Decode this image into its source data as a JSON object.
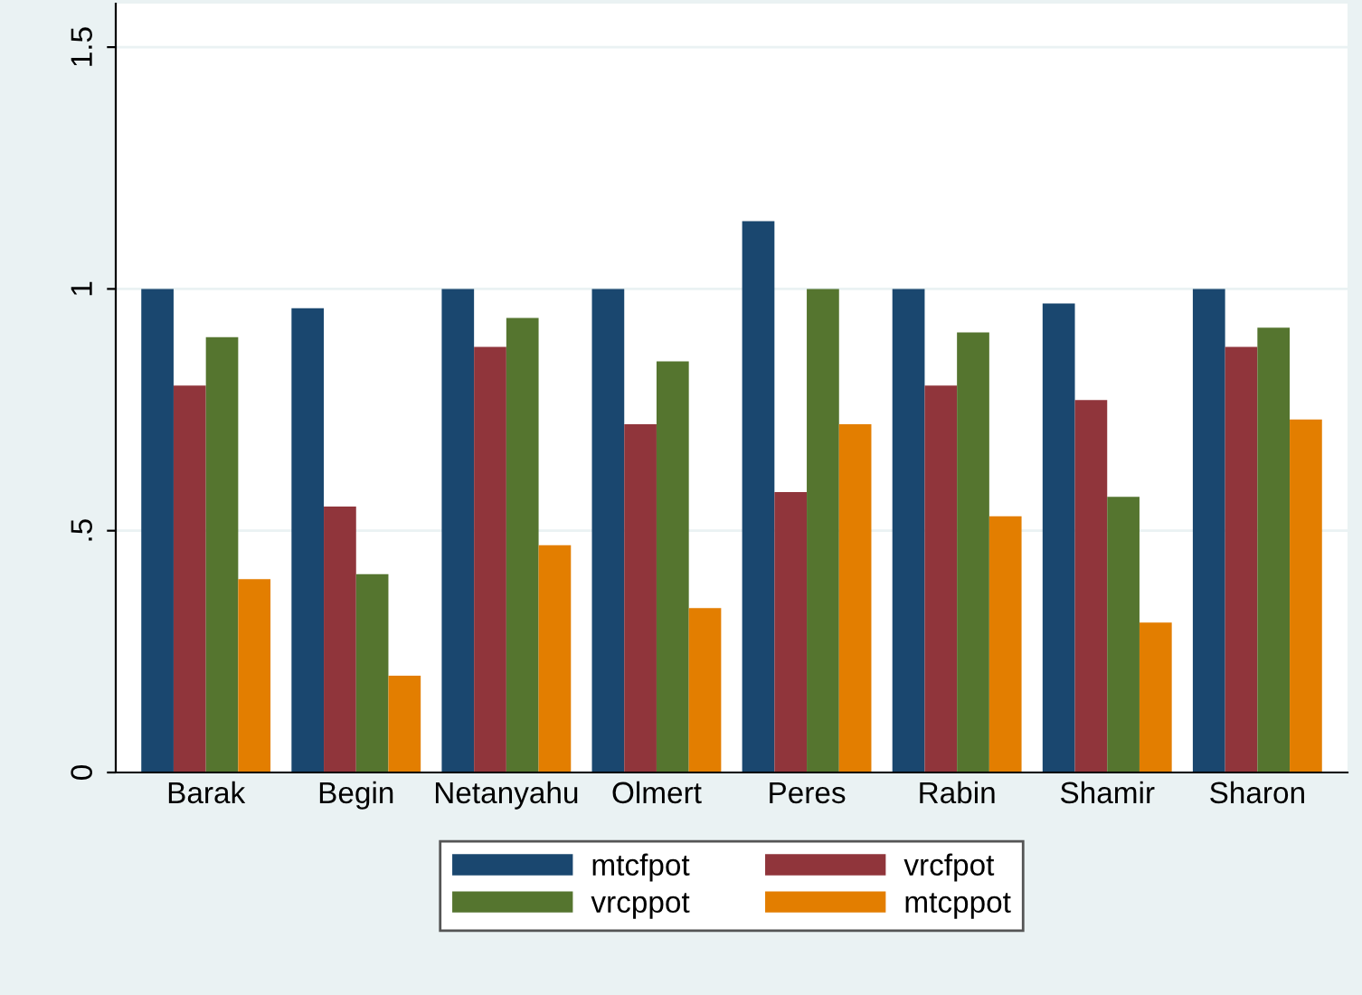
{
  "chart_data": {
    "type": "bar",
    "categories": [
      "Barak",
      "Begin",
      "Netanyahu",
      "Olmert",
      "Peres",
      "Rabin",
      "Shamir",
      "Sharon"
    ],
    "series": [
      {
        "name": "mtcfpot",
        "color": "#1a476f",
        "values": [
          1.0,
          0.96,
          1.0,
          1.0,
          1.14,
          1.0,
          0.97,
          1.0
        ]
      },
      {
        "name": "vrcfpot",
        "color": "#90353b",
        "values": [
          0.8,
          0.55,
          0.88,
          0.72,
          0.58,
          0.8,
          0.77,
          0.88
        ]
      },
      {
        "name": "vrcppot",
        "color": "#55752f",
        "values": [
          0.9,
          0.41,
          0.94,
          0.85,
          1.0,
          0.91,
          0.57,
          0.92
        ]
      },
      {
        "name": "mtcppot",
        "color": "#e37e00",
        "values": [
          0.4,
          0.2,
          0.47,
          0.34,
          0.72,
          0.53,
          0.31,
          0.73
        ]
      }
    ],
    "ylim": [
      0,
      1.59
    ],
    "yticks": [
      0,
      {
        "value": 0.5,
        "label": ".5"
      },
      1,
      1.5
    ],
    "grid": "y",
    "legend": "bottom"
  }
}
